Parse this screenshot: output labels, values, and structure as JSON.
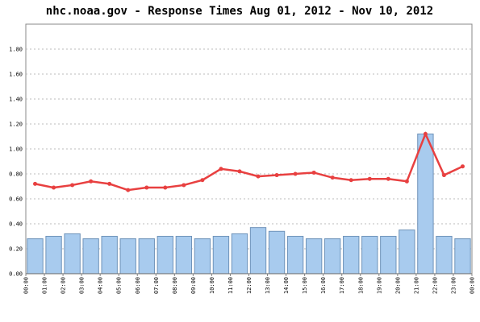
{
  "chart_data": {
    "type": "bar_line",
    "title": "nhc.noaa.gov - Response Times Aug 01, 2012 - Nov 10, 2012",
    "x_labels": [
      "00:00",
      "01:00",
      "02:00",
      "03:00",
      "04:00",
      "05:00",
      "06:00",
      "07:00",
      "08:00",
      "09:00",
      "10:00",
      "11:00",
      "12:00",
      "13:00",
      "14:00",
      "15:00",
      "16:00",
      "17:00",
      "18:00",
      "19:00",
      "20:00",
      "21:00",
      "22:00",
      "23:00",
      "00:00"
    ],
    "series": [
      {
        "type": "bar",
        "color": "#a8cbee",
        "stroke": "#6f93b9",
        "values": [
          0.28,
          0.3,
          0.32,
          0.28,
          0.3,
          0.28,
          0.28,
          0.3,
          0.3,
          0.28,
          0.3,
          0.32,
          0.37,
          0.34,
          0.3,
          0.28,
          0.28,
          0.3,
          0.3,
          0.3,
          0.35,
          1.12,
          0.3,
          0.28
        ]
      },
      {
        "type": "line",
        "color": "#e84040",
        "values": [
          0.72,
          0.69,
          0.71,
          0.74,
          0.72,
          0.67,
          0.69,
          0.69,
          0.71,
          0.75,
          0.84,
          0.82,
          0.78,
          0.79,
          0.8,
          0.81,
          0.77,
          0.75,
          0.76,
          0.76,
          0.74,
          1.12,
          0.79,
          0.86
        ]
      }
    ],
    "ylim": [
      0,
      2.0
    ],
    "yticks": [
      {
        "value": 0,
        "label": "0.00"
      },
      {
        "value": 0.2,
        "label": "0.20"
      },
      {
        "value": 0.4,
        "label": "0.40"
      },
      {
        "value": 0.6,
        "label": "0.60"
      },
      {
        "value": 0.8,
        "label": "0.80"
      },
      {
        "value": 1.0,
        "label": "1.00"
      },
      {
        "value": 1.2,
        "label": "1.20"
      },
      {
        "value": 1.4,
        "label": "1.40"
      },
      {
        "value": 1.6,
        "label": "1.60"
      },
      {
        "value": 1.8,
        "label": "1.80"
      }
    ],
    "grid": true
  }
}
